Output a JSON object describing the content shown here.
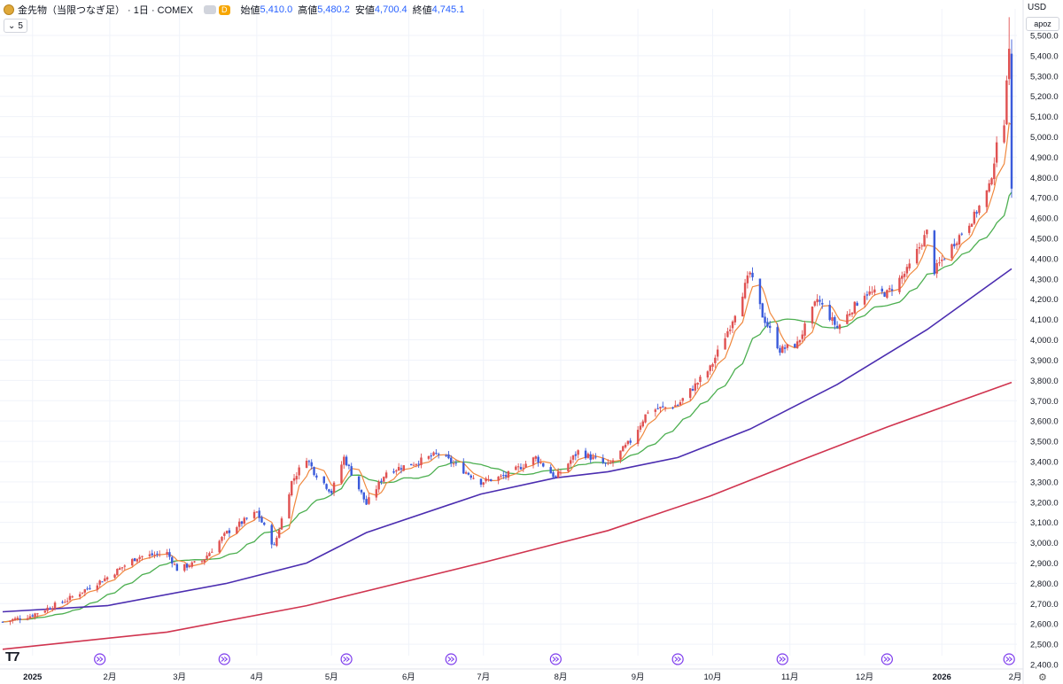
{
  "header": {
    "symbol": "金先物（当限つなぎ足） · 1日 · COMEX",
    "badge": "D",
    "open_label": "始値",
    "open_value": "5,410.0",
    "high_label": "高値",
    "high_value": "5,480.2",
    "low_label": "安値",
    "low_value": "4,700.4",
    "close_label": "終値",
    "close_value": "4,745.1"
  },
  "subtool": {
    "count": "5"
  },
  "currency": "USD",
  "scale_mode": "apoz",
  "icons": {
    "coin": "gold-coin-icon",
    "chevron": "chevron-down-icon",
    "logo": "tradingview-logo-icon",
    "settings": "settings-icon",
    "marker": "double-arrow-right-icon"
  },
  "colors": {
    "up": "#e05252",
    "down": "#3b5bdb",
    "ma_fast": "#f0883e",
    "ma_mid": "#4caf50",
    "ma_slow": "#4b2db0",
    "ma_long": "#d0344f",
    "marker": "#7c3aed"
  },
  "chart_data": {
    "type": "candlestick",
    "title": "金先物（当限つなぎ足） · 1日 · COMEX",
    "y_axis": {
      "min": 2400,
      "max": 5500,
      "step": 100,
      "currency": "USD"
    },
    "y_tick_labels": [
      "2,400.0",
      "2,500.0",
      "2,600.0",
      "2,700.0",
      "2,800.0",
      "2,900.0",
      "3,000.0",
      "3,100.0",
      "3,200.0",
      "3,300.0",
      "3,400.0",
      "3,500.0",
      "3,600.0",
      "3,700.0",
      "3,800.0",
      "3,900.0",
      "4,000.0",
      "4,100.0",
      "4,200.0",
      "4,300.0",
      "4,400.0",
      "4,500.0",
      "4,600.0",
      "4,700.0",
      "4,800.0",
      "4,900.0",
      "5,000.0",
      "5,100.0",
      "5,200.0",
      "5,300.0",
      "5,400.0",
      "5,500.0"
    ],
    "x_axis": {
      "start_date": "2024-12-20",
      "end_date": "2026-01-29",
      "ticks": [
        {
          "label": "2025",
          "date": "2025-01-01",
          "bold": true
        },
        {
          "label": "2月",
          "date": "2025-02-01"
        },
        {
          "label": "3月",
          "date": "2025-03-01"
        },
        {
          "label": "4月",
          "date": "2025-04-01"
        },
        {
          "label": "5月",
          "date": "2025-05-01"
        },
        {
          "label": "6月",
          "date": "2025-06-01"
        },
        {
          "label": "7月",
          "date": "2025-07-01"
        },
        {
          "label": "8月",
          "date": "2025-08-01"
        },
        {
          "label": "9月",
          "date": "2025-09-01"
        },
        {
          "label": "10月",
          "date": "2025-10-01"
        },
        {
          "label": "11月",
          "date": "2025-11-01"
        },
        {
          "label": "12月",
          "date": "2025-12-01"
        },
        {
          "label": "2026",
          "date": "2026-01-01",
          "bold": true
        },
        {
          "label": "2月",
          "date": "2026-02-01"
        }
      ]
    },
    "event_marker_dates": [
      "2025-01-28",
      "2025-03-19",
      "2025-05-07",
      "2025-06-18",
      "2025-07-30",
      "2025-09-17",
      "2025-10-29",
      "2025-12-10",
      "2026-01-28"
    ],
    "price_anchors": [
      {
        "date": "2024-12-20",
        "close": 2610
      },
      {
        "date": "2024-12-31",
        "close": 2640
      },
      {
        "date": "2025-01-15",
        "close": 2720
      },
      {
        "date": "2025-01-31",
        "close": 2830
      },
      {
        "date": "2025-02-12",
        "close": 2930
      },
      {
        "date": "2025-02-24",
        "close": 2950
      },
      {
        "date": "2025-02-28",
        "close": 2870
      },
      {
        "date": "2025-03-10",
        "close": 2910
      },
      {
        "date": "2025-03-20",
        "close": 3050
      },
      {
        "date": "2025-04-01",
        "close": 3150
      },
      {
        "date": "2025-04-08",
        "close": 2980
      },
      {
        "date": "2025-04-15",
        "close": 3300
      },
      {
        "date": "2025-04-21",
        "close": 3420
      },
      {
        "date": "2025-04-24",
        "close": 3350
      },
      {
        "date": "2025-05-01",
        "close": 3250
      },
      {
        "date": "2025-05-06",
        "close": 3420
      },
      {
        "date": "2025-05-15",
        "close": 3190
      },
      {
        "date": "2025-05-23",
        "close": 3350
      },
      {
        "date": "2025-06-05",
        "close": 3400
      },
      {
        "date": "2025-06-13",
        "close": 3440
      },
      {
        "date": "2025-06-20",
        "close": 3380
      },
      {
        "date": "2025-06-30",
        "close": 3300
      },
      {
        "date": "2025-07-10",
        "close": 3330
      },
      {
        "date": "2025-07-22",
        "close": 3420
      },
      {
        "date": "2025-07-30",
        "close": 3320
      },
      {
        "date": "2025-08-08",
        "close": 3450
      },
      {
        "date": "2025-08-20",
        "close": 3380
      },
      {
        "date": "2025-08-29",
        "close": 3500
      },
      {
        "date": "2025-09-05",
        "close": 3650
      },
      {
        "date": "2025-09-17",
        "close": 3680
      },
      {
        "date": "2025-09-30",
        "close": 3860
      },
      {
        "date": "2025-10-08",
        "close": 4070
      },
      {
        "date": "2025-10-16",
        "close": 4330
      },
      {
        "date": "2025-10-21",
        "close": 4120
      },
      {
        "date": "2025-10-28",
        "close": 3950
      },
      {
        "date": "2025-11-04",
        "close": 3980
      },
      {
        "date": "2025-11-12",
        "close": 4200
      },
      {
        "date": "2025-11-20",
        "close": 4060
      },
      {
        "date": "2025-12-01",
        "close": 4230
      },
      {
        "date": "2025-12-10",
        "close": 4230
      },
      {
        "date": "2025-12-18",
        "close": 4340
      },
      {
        "date": "2025-12-26",
        "close": 4530
      },
      {
        "date": "2025-12-29",
        "close": 4340
      },
      {
        "date": "2026-01-06",
        "close": 4480
      },
      {
        "date": "2026-01-14",
        "close": 4610
      },
      {
        "date": "2026-01-20",
        "close": 4750
      },
      {
        "date": "2026-01-23",
        "close": 4950
      },
      {
        "date": "2026-01-26",
        "close": 5080
      },
      {
        "date": "2026-01-27",
        "close": 5300
      },
      {
        "date": "2026-01-28",
        "close": 5410
      },
      {
        "date": "2026-01-29",
        "close": 4745
      }
    ],
    "last_candle": {
      "open": 5410.0,
      "high": 5480.2,
      "low": 4700.4,
      "close": 4745.1
    },
    "moving_averages": [
      {
        "name": "MA fast",
        "color": "#f0883e",
        "end_value": 5150
      },
      {
        "name": "MA mid",
        "color": "#4caf50",
        "end_value": 4720
      },
      {
        "name": "MA slow",
        "color": "#4b2db0",
        "points": [
          {
            "date": "2024-12-20",
            "value": 2660
          },
          {
            "date": "2025-01-31",
            "value": 2690
          },
          {
            "date": "2025-03-20",
            "value": 2800
          },
          {
            "date": "2025-04-21",
            "value": 2900
          },
          {
            "date": "2025-05-15",
            "value": 3050
          },
          {
            "date": "2025-06-30",
            "value": 3240
          },
          {
            "date": "2025-07-30",
            "value": 3320
          },
          {
            "date": "2025-08-20",
            "value": 3350
          },
          {
            "date": "2025-09-17",
            "value": 3420
          },
          {
            "date": "2025-10-16",
            "value": 3560
          },
          {
            "date": "2025-11-20",
            "value": 3780
          },
          {
            "date": "2025-12-26",
            "value": 4050
          },
          {
            "date": "2026-01-29",
            "value": 4350
          }
        ]
      },
      {
        "name": "MA long",
        "color": "#d0344f",
        "points": [
          {
            "date": "2024-12-20",
            "value": 2475
          },
          {
            "date": "2025-02-24",
            "value": 2560
          },
          {
            "date": "2025-04-21",
            "value": 2690
          },
          {
            "date": "2025-06-30",
            "value": 2900
          },
          {
            "date": "2025-08-20",
            "value": 3060
          },
          {
            "date": "2025-09-30",
            "value": 3230
          },
          {
            "date": "2025-11-04",
            "value": 3400
          },
          {
            "date": "2025-12-10",
            "value": 3570
          },
          {
            "date": "2026-01-29",
            "value": 3790
          }
        ]
      }
    ]
  }
}
